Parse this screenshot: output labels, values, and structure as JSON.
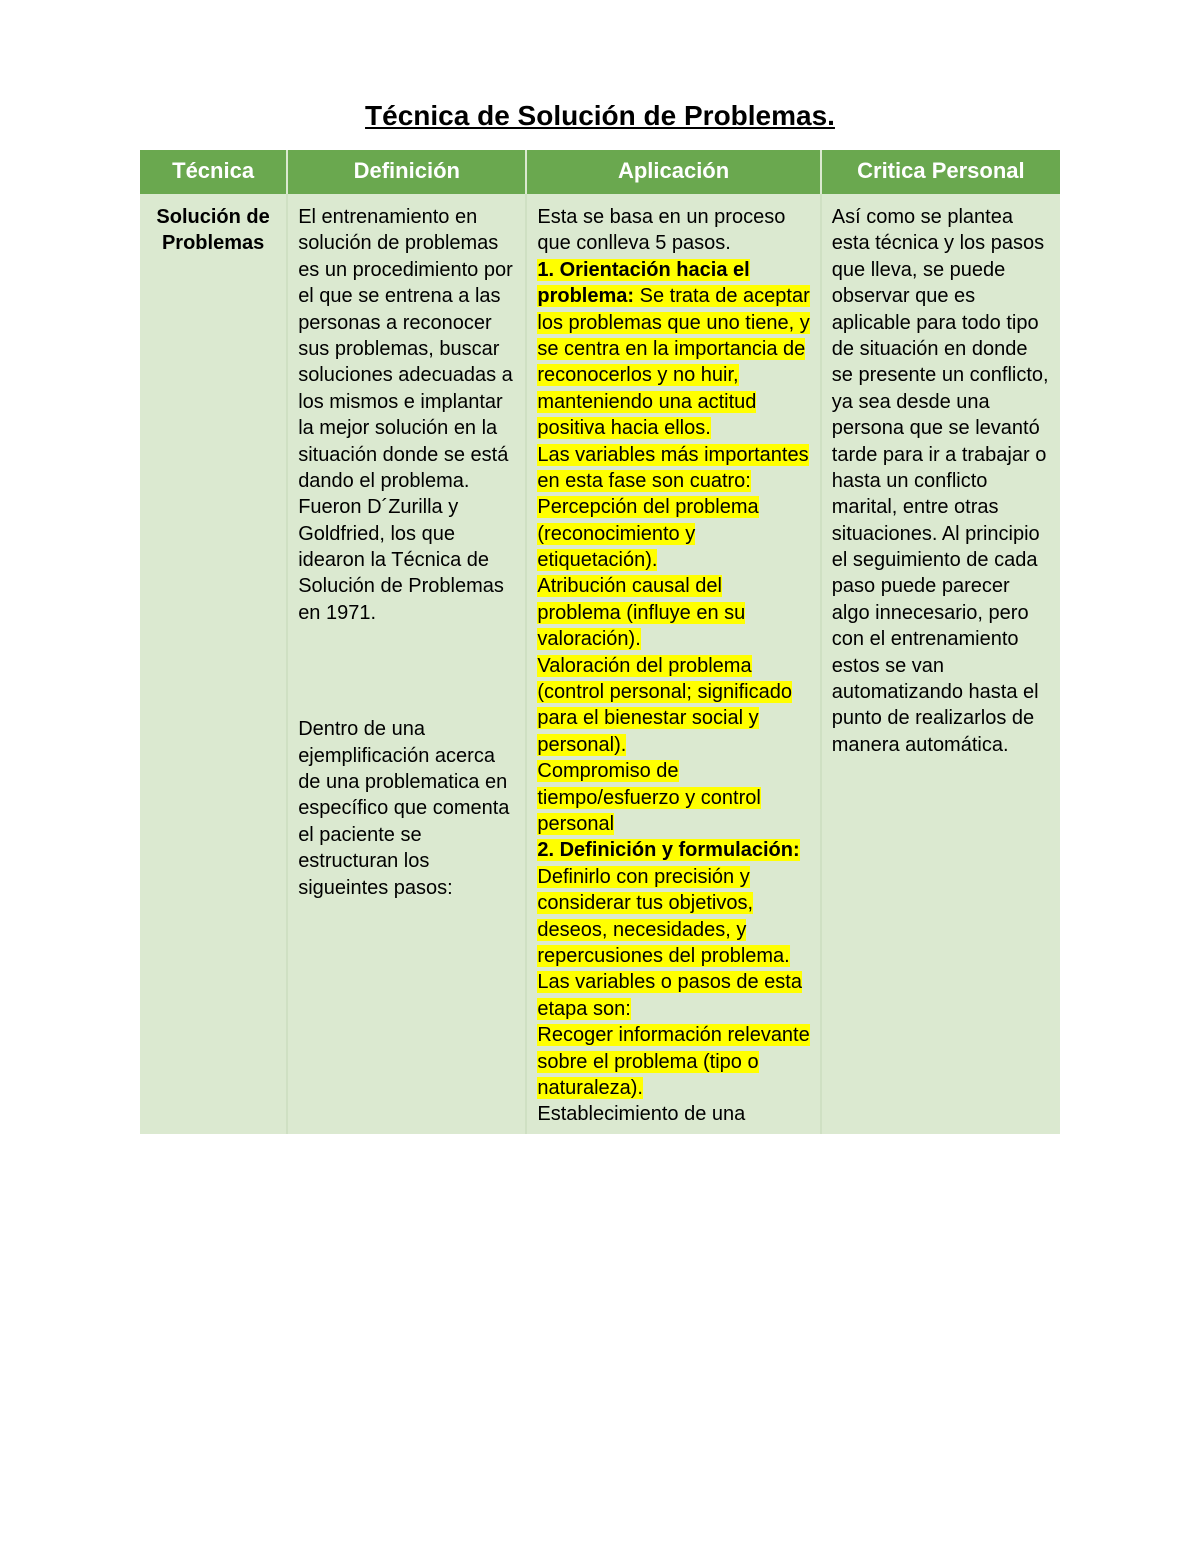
{
  "title": "Técnica de Solución de Problemas.",
  "colors": {
    "header_bg": "#6aa84f",
    "header_text": "#ffffff",
    "body_bg": "#dbe9d0",
    "highlight": "#ffff00",
    "text": "#000000",
    "page_bg": "#ffffff"
  },
  "typography": {
    "title_fontsize": 28,
    "header_fontsize": 22,
    "cell_fontsize": 20,
    "font_family": "Arial"
  },
  "columns": [
    {
      "key": "tecnica",
      "label": "Técnica",
      "width_pct": 16
    },
    {
      "key": "definicion",
      "label": "Definición",
      "width_pct": 26
    },
    {
      "key": "aplicacion",
      "label": "Aplicación",
      "width_pct": 32
    },
    {
      "key": "critica",
      "label": "Critica Personal",
      "width_pct": 26
    }
  ],
  "row": {
    "tecnica": "Solución de Problemas",
    "definicion_p1": "El entrenamiento en solución de problemas es un procedimiento por el que se entrena a las personas a reconocer sus problemas, buscar soluciones adecuadas a los mismos e implantar la mejor solución en la situación donde se está dando el problema. Fueron D´Zurilla y Goldfried, los que idearon la Técnica de Solución de Problemas en 1971.",
    "definicion_p2": "Dentro de una ejemplificación acerca de una problematica en específico que comenta el paciente se estructuran los sigueintes pasos:",
    "aplicacion_intro": "Esta se basa en un proceso que conlleva 5 pasos.",
    "aplicacion_step1_title": "1. Orientación hacia el problema:",
    "aplicacion_step1_body": " Se trata de aceptar los problemas que uno tiene, y se centra en la importancia de reconocerlos y no huir, manteniendo una actitud positiva hacia ellos.",
    "aplicacion_step1_vars_intro": "Las variables más importantes en esta fase son cuatro:",
    "aplicacion_step1_var1": "Percepción del problema (reconocimiento y etiquetación).",
    "aplicacion_step1_var2": "Atribución causal del problema (influye en su valoración).",
    "aplicacion_step1_var3": "Valoración del problema (control personal; significado para el bienestar social y personal).",
    "aplicacion_step1_var4": "Compromiso de tiempo/esfuerzo y control personal",
    "aplicacion_step2_title": "2. Definición y formulación:",
    "aplicacion_step2_body": " Definirlo con precisión y considerar tus objetivos, deseos, necesidades, y repercusiones del problema.",
    "aplicacion_step2_vars_intro": "Las variables o pasos de esta etapa son:",
    "aplicacion_step2_var1": "Recoger información relevante sobre el problema (tipo o naturaleza).",
    "aplicacion_step2_trail": "Establecimiento de una",
    "critica": "Así como se plantea esta técnica y los pasos que lleva, se puede observar que es aplicable para todo tipo de situación en donde se presente un conflicto, ya sea desde una persona que se levantó tarde para ir a trabajar o hasta un conflicto marital, entre otras situaciones. Al principio el seguimiento de cada paso puede parecer algo innecesario, pero con el entrenamiento estos se van automatizando hasta el punto de realizarlos de manera automática."
  }
}
